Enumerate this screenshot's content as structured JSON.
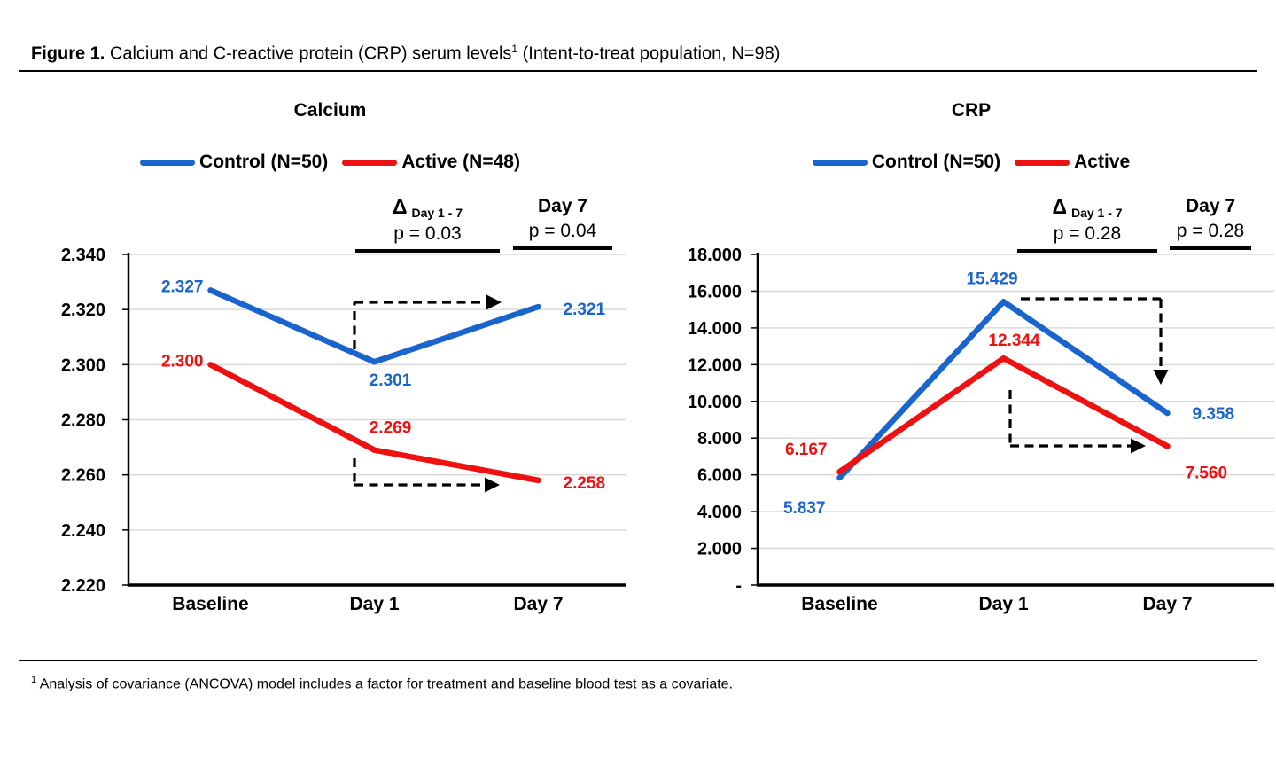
{
  "figure": {
    "title_bold": "Figure 1.",
    "title_main": " Calcium and C-reactive protein (CRP) serum levels",
    "title_sup": "1",
    "title_tail": " (Intent-to-treat population, N=98)",
    "footnote_sup": "1",
    "footnote_text": " Analysis of covariance (ANCOVA) model includes a factor for treatment and baseline blood test as a covariate."
  },
  "colors": {
    "control": "#1A64CE",
    "active": "#EE1111",
    "grid": "#D9D9D9",
    "axis": "#000000",
    "text": "#000000"
  },
  "chart_data": [
    {
      "id": "calcium",
      "type": "line",
      "title": "Calcium",
      "categories": [
        "Baseline",
        "Day 1",
        "Day 7"
      ],
      "ylim": [
        2.22,
        2.34
      ],
      "grid": true,
      "legend_position": "top",
      "yticks": [
        {
          "value": 2.34,
          "label": "2.340"
        },
        {
          "value": 2.32,
          "label": "2.320"
        },
        {
          "value": 2.3,
          "label": "2.300"
        },
        {
          "value": 2.28,
          "label": "2.280"
        },
        {
          "value": 2.26,
          "label": "2.260"
        },
        {
          "value": 2.24,
          "label": "2.240"
        },
        {
          "value": 2.22,
          "label": "2.220"
        }
      ],
      "series": [
        {
          "name": "Control (N=50)",
          "key": "control",
          "values": [
            2.327,
            2.301,
            2.321
          ],
          "labels": [
            "2.327",
            "2.301",
            "2.321"
          ]
        },
        {
          "name": "Active (N=48)",
          "key": "active",
          "values": [
            2.3,
            2.269,
            2.258
          ],
          "labels": [
            "2.300",
            "2.269",
            "2.258"
          ]
        }
      ],
      "annotations": {
        "delta_symbol": "Δ",
        "delta_subscript": "Day 1 - 7",
        "delta_p": "p = 0.03",
        "day7_label": "Day 7",
        "day7_p": "p = 0.04"
      },
      "arrows": [
        {
          "series": "Control (N=50)",
          "desc": "dashed arrow Day 1 → Day 7"
        },
        {
          "series": "Active (N=48)",
          "desc": "dashed arrow Day 1 → Day 7"
        }
      ]
    },
    {
      "id": "crp",
      "type": "line",
      "title": "CRP",
      "categories": [
        "Baseline",
        "Day 1",
        "Day 7"
      ],
      "ylim": [
        0,
        18
      ],
      "grid": true,
      "legend_position": "top",
      "yticks": [
        {
          "value": 18,
          "label": "18.000"
        },
        {
          "value": 16,
          "label": "16.000"
        },
        {
          "value": 14,
          "label": "14.000"
        },
        {
          "value": 12,
          "label": "12.000"
        },
        {
          "value": 10,
          "label": "10.000"
        },
        {
          "value": 8,
          "label": "8.000"
        },
        {
          "value": 6,
          "label": "6.000"
        },
        {
          "value": 4,
          "label": "4.000"
        },
        {
          "value": 2,
          "label": "2.000"
        },
        {
          "value": 0,
          "label": "-"
        }
      ],
      "series": [
        {
          "name": "Control (N=50)",
          "key": "control",
          "values": [
            5.837,
            15.429,
            9.358
          ],
          "labels": [
            "5.837",
            "15.429",
            "9.358"
          ]
        },
        {
          "name": "Active",
          "key": "active",
          "values": [
            6.167,
            12.344,
            7.56
          ],
          "labels": [
            "6.167",
            "12.344",
            "7.560"
          ]
        }
      ],
      "annotations": {
        "delta_symbol": "Δ",
        "delta_subscript": "Day 1 - 7",
        "delta_p": "p = 0.28",
        "day7_label": "Day 7",
        "day7_p": "p = 0.28"
      },
      "arrows": [
        {
          "series": "Control (N=50)",
          "desc": "dashed arrow Day 1 → Day 7"
        },
        {
          "series": "Active",
          "desc": "dashed arrow Day 1 → Day 7"
        }
      ]
    }
  ]
}
